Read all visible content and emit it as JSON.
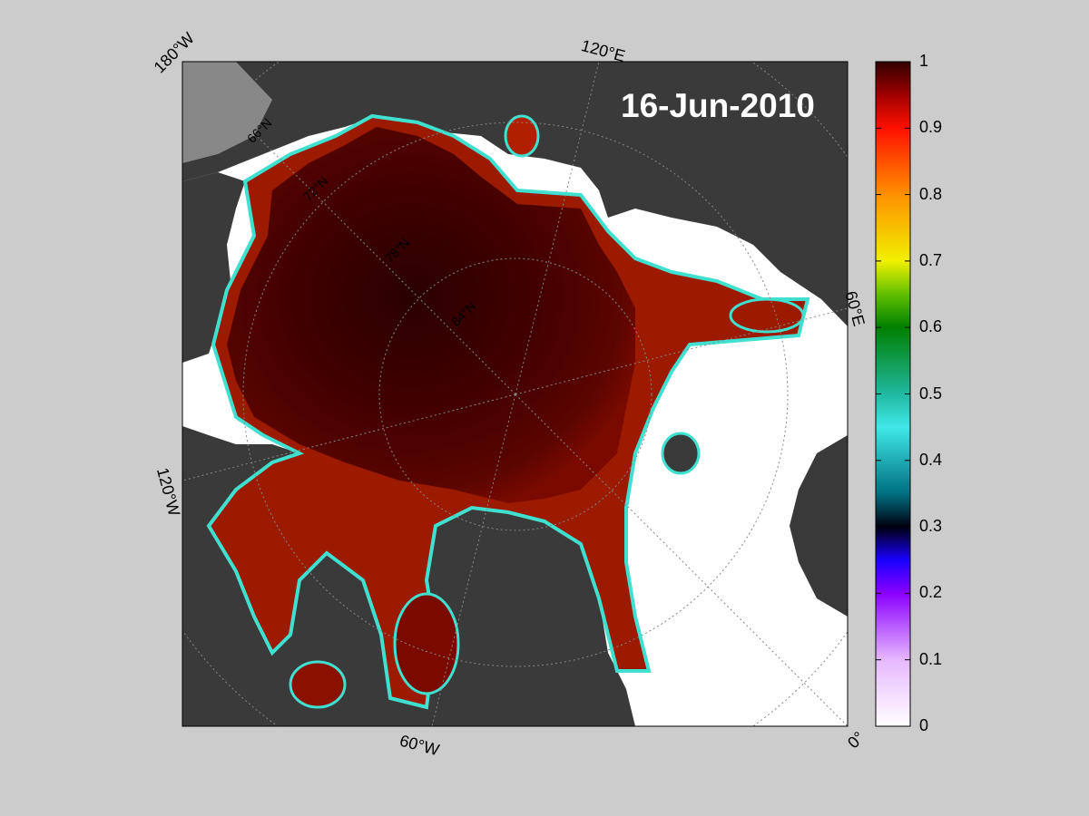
{
  "date_label": "16-Jun-2010",
  "longitude_labels": {
    "top_left": "180°W",
    "top": "120°E",
    "right": "60°E",
    "left": "120°W",
    "bottom": "60°W",
    "bottom_right": "0°"
  },
  "latitude_labels": [
    "66°N",
    "72°N",
    "78°N",
    "84°N"
  ],
  "colorbar": {
    "ticks": [
      "1",
      "0.9",
      "0.8",
      "0.7",
      "0.6",
      "0.5",
      "0.4",
      "0.3",
      "0.2",
      "0.1",
      "0"
    ],
    "range": [
      0,
      1
    ]
  },
  "colors": {
    "background": "#cccccc",
    "land": "#3a3a3a",
    "open_water": "#ffffff",
    "ice_high": "#4a0000"
  }
}
